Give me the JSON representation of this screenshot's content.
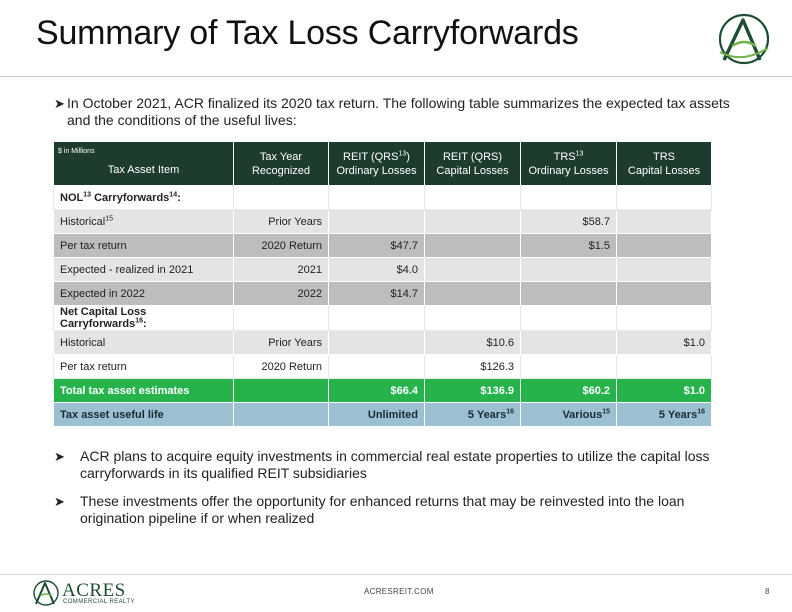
{
  "header": {
    "title": "Summary of Tax Loss Carryforwards"
  },
  "intro": {
    "line1": "In October 2021, ACR finalized its 2020 tax return. The following table summarizes the expected tax assets",
    "line2": "and the conditions of the useful lives:"
  },
  "table": {
    "units": "$ in Millions",
    "headers": {
      "item": "Tax Asset Item",
      "year_l1": "Tax Year",
      "year_l2": "Recognized",
      "reit_ord_l1a": "REIT (QRS",
      "reit_ord_sup": "13",
      "reit_ord_l1b": ")",
      "reit_ord_l2": "Ordinary Losses",
      "reit_cap_l1": "REIT (QRS)",
      "reit_cap_l2": "Capital Losses",
      "trs_ord_l1": "TRS",
      "trs_ord_sup": "13",
      "trs_ord_l2": "Ordinary Losses",
      "trs_cap_l1": "TRS",
      "trs_cap_l2": "Capital Losses"
    },
    "nol_section": {
      "label": "NOL",
      "sup1": "13",
      "label2": " Carryforwards",
      "sup2": "14",
      "tail": ":"
    },
    "nol_rows": [
      {
        "item": "Historical",
        "sup": "15",
        "year": "Prior Years",
        "reit_ord": "",
        "reit_cap": "",
        "trs_ord": "$58.7",
        "trs_cap": ""
      },
      {
        "item": "Per tax return",
        "sup": "",
        "year": "2020 Return",
        "reit_ord": "$47.7",
        "reit_cap": "",
        "trs_ord": "$1.5",
        "trs_cap": ""
      },
      {
        "item": "Expected - realized in 2021",
        "sup": "",
        "year": "2021",
        "reit_ord": "$4.0",
        "reit_cap": "",
        "trs_ord": "",
        "trs_cap": ""
      },
      {
        "item": "Expected in 2022",
        "sup": "",
        "year": "2022",
        "reit_ord": "$14.7",
        "reit_cap": "",
        "trs_ord": "",
        "trs_cap": ""
      }
    ],
    "ncl_section": {
      "label": "Net Capital Loss Carryforwards",
      "sup": "16",
      "tail": ":"
    },
    "ncl_rows": [
      {
        "item": "Historical",
        "year": "Prior Years",
        "reit_ord": "",
        "reit_cap": "$10.6",
        "trs_ord": "",
        "trs_cap": "$1.0"
      },
      {
        "item": "Per tax return",
        "year": "2020 Return",
        "reit_ord": "",
        "reit_cap": "$126.3",
        "trs_ord": "",
        "trs_cap": ""
      }
    ],
    "total_row": {
      "item": "Total tax asset estimates",
      "year": "",
      "reit_ord": "$66.4",
      "reit_cap": "$136.9",
      "trs_ord": "$60.2",
      "trs_cap": "$1.0"
    },
    "life_row": {
      "item": "Tax asset useful life",
      "year": "",
      "reit_ord": "Unlimited",
      "reit_cap": "5 Years",
      "reit_cap_sup": "16",
      "trs_ord": "Various",
      "trs_ord_sup": "15",
      "trs_cap": "5 Years",
      "trs_cap_sup": "16"
    }
  },
  "bullets": [
    {
      "line1": "ACR plans to acquire equity investments in commercial real estate properties to utilize the capital loss",
      "line2": "carryforwards in its qualified REIT subsidiaries"
    },
    {
      "line1": "These investments offer the opportunity for enhanced returns that may be reinvested into the loan",
      "line2": "origination pipeline if or when realized"
    }
  ],
  "footer": {
    "brand": "ACRES",
    "brand_sub": "COMMERCIAL REALTY",
    "url": "ACRESREIT.COM",
    "page": "8"
  },
  "colors": {
    "header_bg": "#1d3c2e",
    "total_bg": "#26b34c",
    "life_bg": "#9ac0d2",
    "logo_green": "#1d4d33"
  },
  "icons": {
    "logo": "acres-logo-icon",
    "bullet": "arrow-bullet-icon"
  }
}
